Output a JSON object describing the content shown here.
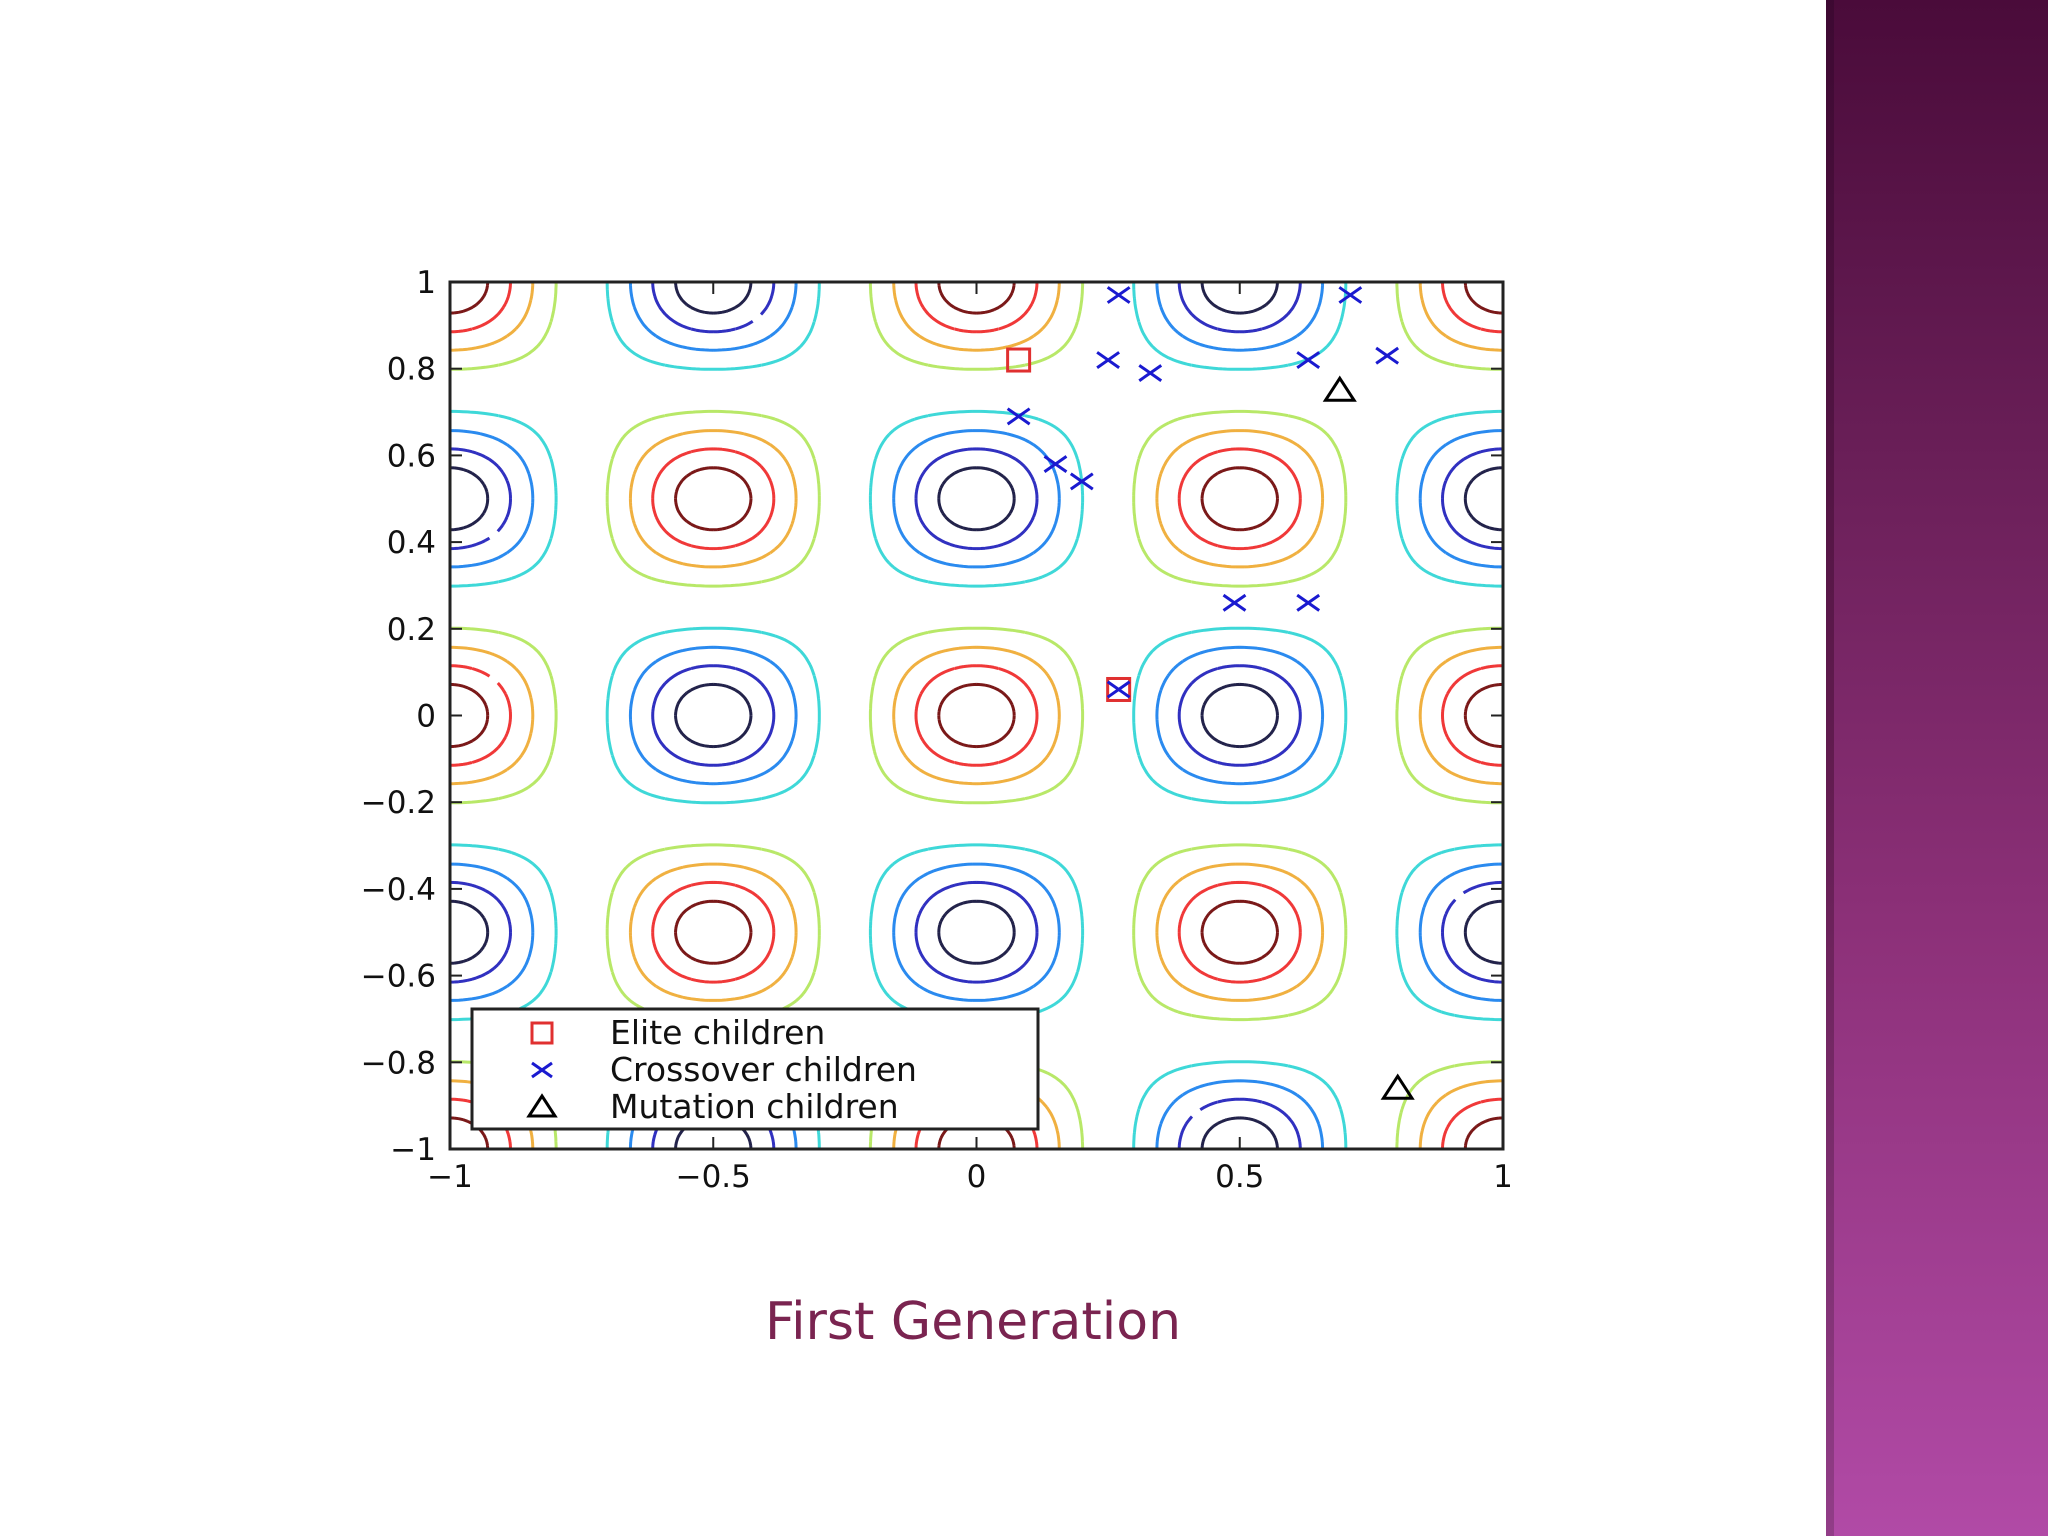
{
  "caption": "First Generation",
  "colors": {
    "side_band_top": "#4a0b3a",
    "side_band_bottom": "#b14aa6",
    "caption": "#7a2450",
    "elite": "#e03030",
    "crossover": "#1a1ad0",
    "mutation": "#000000"
  },
  "chart_data": {
    "type": "scatter",
    "background": "contour",
    "title": "",
    "xlabel": "",
    "ylabel": "",
    "xlim": [
      -1,
      1
    ],
    "ylim": [
      -1,
      1
    ],
    "xticks": [
      "−1",
      "−0.5",
      "0",
      "0.5",
      "1"
    ],
    "yticks": [
      "1",
      "0.8",
      "0.6",
      "0.4",
      "0.2",
      "0",
      "−0.2",
      "−0.4",
      "−0.6",
      "−0.8",
      "−1"
    ],
    "grid": false,
    "legend_position": "bottom-left",
    "contour_levels": [
      -0.9,
      -0.75,
      -0.55,
      -0.3,
      0.3,
      0.55,
      0.75,
      0.9
    ],
    "contour_colors": [
      "#22224a",
      "#3030c0",
      "#2a8aef",
      "#3ed8d8",
      "#b8e868",
      "#f0b040",
      "#f03838",
      "#7a1818"
    ],
    "series": [
      {
        "name": "Elite children",
        "marker": "square",
        "color": "#e03030",
        "points": [
          [
            0.08,
            0.82
          ],
          [
            0.27,
            0.06
          ]
        ]
      },
      {
        "name": "Crossover children",
        "marker": "x",
        "color": "#1a1ad0",
        "points": [
          [
            0.27,
            0.97
          ],
          [
            0.25,
            0.82
          ],
          [
            0.33,
            0.79
          ],
          [
            0.08,
            0.69
          ],
          [
            0.15,
            0.58
          ],
          [
            0.2,
            0.54
          ],
          [
            0.27,
            0.06
          ],
          [
            0.49,
            0.26
          ],
          [
            0.63,
            0.26
          ],
          [
            0.63,
            0.82
          ],
          [
            0.71,
            0.97
          ],
          [
            0.78,
            0.83
          ]
        ]
      },
      {
        "name": "Mutation children",
        "marker": "triangle",
        "color": "#000000",
        "points": [
          [
            0.69,
            0.75
          ],
          [
            0.8,
            -0.86
          ]
        ]
      }
    ]
  }
}
